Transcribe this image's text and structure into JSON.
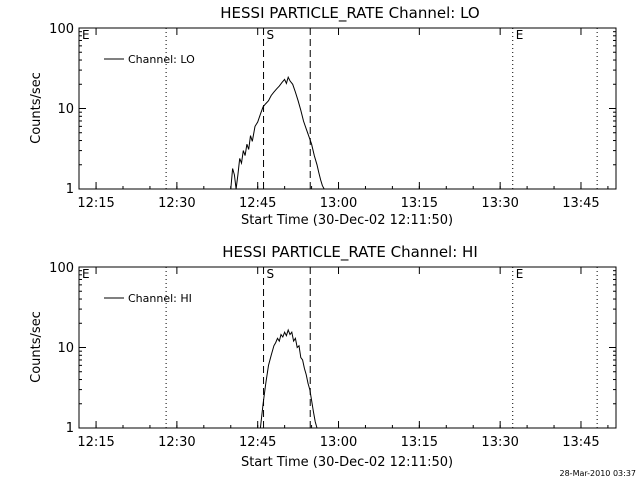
{
  "footer": {
    "timestamp": "28-Mar-2010 03:37"
  },
  "chart_data": [
    {
      "type": "line",
      "title": "HESSI PARTICLE_RATE Channel: LO",
      "xlabel": "Start Time (30-Dec-02 12:11:50)",
      "ylabel": "Counts/sec",
      "y_scale": "log",
      "xlim": [
        "12:11:50",
        "13:51:30"
      ],
      "ylim": [
        1,
        100
      ],
      "x_ticks": [
        "12:15",
        "12:30",
        "12:45",
        "13:00",
        "13:15",
        "13:30",
        "13:45"
      ],
      "y_ticks": [
        "1",
        "10",
        "100"
      ],
      "legend": {
        "position": "top-left",
        "entries": [
          "Channel: LO"
        ]
      },
      "markers": [
        {
          "label": "E",
          "time": "12:11:50",
          "style": "dotted"
        },
        {
          "label": "",
          "time": "12:28:00",
          "style": "dotted"
        },
        {
          "label": "S",
          "time": "12:46:05",
          "style": "dashed"
        },
        {
          "label": "",
          "time": "12:54:45",
          "style": "dashed"
        },
        {
          "label": "E",
          "time": "13:32:20",
          "style": "dotted"
        },
        {
          "label": "",
          "time": "13:48:00",
          "style": "dotted"
        }
      ],
      "series": [
        {
          "name": "Channel: LO",
          "x": [
            "12:40:00",
            "12:40:20",
            "12:40:40",
            "12:41:00",
            "12:41:20",
            "12:41:40",
            "12:42:00",
            "12:42:20",
            "12:42:40",
            "12:43:00",
            "12:43:20",
            "12:43:40",
            "12:44:00",
            "12:44:30",
            "12:45:00",
            "12:45:30",
            "12:46:00",
            "12:46:30",
            "12:47:00",
            "12:47:30",
            "12:48:00",
            "12:48:30",
            "12:49:00",
            "12:49:30",
            "12:50:00",
            "12:50:20",
            "12:50:40",
            "12:51:00",
            "12:51:30",
            "12:52:00",
            "12:52:30",
            "12:53:00",
            "12:53:30",
            "12:54:00",
            "12:54:30",
            "12:55:00",
            "12:55:30",
            "12:56:00",
            "12:56:20",
            "12:56:40",
            "12:57:00",
            "12:57:20"
          ],
          "y": [
            1,
            1.8,
            1.5,
            1,
            1.5,
            2.4,
            2.1,
            3.0,
            2.6,
            3.6,
            3.1,
            4.6,
            3.9,
            6.0,
            6.8,
            8.5,
            10.5,
            11.5,
            12.5,
            14.5,
            16.0,
            17.5,
            19.0,
            21.0,
            23.0,
            20.5,
            24.5,
            22.0,
            20.0,
            16.0,
            12.5,
            9.5,
            7.0,
            5.6,
            4.5,
            3.6,
            2.6,
            2.0,
            1.6,
            1.3,
            1.1,
            1
          ]
        }
      ]
    },
    {
      "type": "line",
      "title": "HESSI PARTICLE_RATE Channel: HI",
      "xlabel": "Start Time (30-Dec-02 12:11:50)",
      "ylabel": "Counts/sec",
      "y_scale": "log",
      "xlim": [
        "12:11:50",
        "13:51:30"
      ],
      "ylim": [
        1,
        100
      ],
      "x_ticks": [
        "12:15",
        "12:30",
        "12:45",
        "13:00",
        "13:15",
        "13:30",
        "13:45"
      ],
      "y_ticks": [
        "1",
        "10",
        "100"
      ],
      "legend": {
        "position": "top-left",
        "entries": [
          "Channel: HI"
        ]
      },
      "markers": [
        {
          "label": "E",
          "time": "12:11:50",
          "style": "dotted"
        },
        {
          "label": "",
          "time": "12:28:00",
          "style": "dotted"
        },
        {
          "label": "S",
          "time": "12:46:05",
          "style": "dashed"
        },
        {
          "label": "",
          "time": "12:54:45",
          "style": "dashed"
        },
        {
          "label": "E",
          "time": "13:32:20",
          "style": "dotted"
        },
        {
          "label": "",
          "time": "13:48:00",
          "style": "dotted"
        }
      ],
      "series": [
        {
          "name": "Channel: HI",
          "x": [
            "12:45:30",
            "12:46:00",
            "12:46:30",
            "12:47:00",
            "12:47:30",
            "12:48:00",
            "12:48:20",
            "12:48:40",
            "12:49:00",
            "12:49:20",
            "12:49:40",
            "12:50:00",
            "12:50:20",
            "12:50:40",
            "12:51:00",
            "12:51:20",
            "12:51:40",
            "12:52:00",
            "12:52:20",
            "12:52:40",
            "12:53:00",
            "12:53:20",
            "12:53:40",
            "12:54:00",
            "12:54:20",
            "12:54:40",
            "12:55:00",
            "12:55:20",
            "12:55:40",
            "12:56:00"
          ],
          "y": [
            1,
            2.0,
            3.6,
            6.0,
            8.0,
            10.5,
            11.5,
            13.0,
            12.0,
            14.5,
            13.5,
            15.5,
            14.0,
            16.5,
            14.5,
            15.5,
            12.0,
            13.0,
            10.0,
            10.5,
            7.5,
            7.0,
            5.5,
            4.6,
            3.6,
            3.0,
            2.2,
            1.6,
            1.2,
            1
          ]
        }
      ]
    }
  ]
}
